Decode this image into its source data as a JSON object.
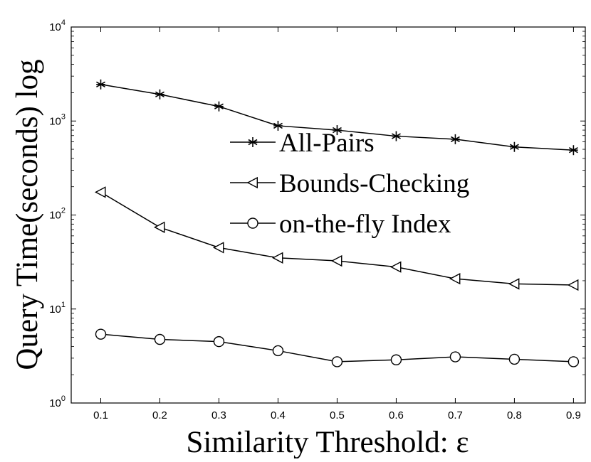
{
  "chart_data": {
    "type": "line",
    "xlabel": "Similarity Threshold: ε",
    "ylabel": "Query Time(seconds) log",
    "x": [
      0.1,
      0.2,
      0.3,
      0.4,
      0.5,
      0.6,
      0.7,
      0.8,
      0.9
    ],
    "x_ticks": [
      "0.1",
      "0.2",
      "0.3",
      "0.4",
      "0.5",
      "0.6",
      "0.7",
      "0.8",
      "0.9"
    ],
    "xlim": [
      0.05,
      0.92
    ],
    "yscale": "log",
    "ylim": [
      1,
      10000
    ],
    "y_ticks": [
      {
        "value": 1,
        "base": "10",
        "exp": "0"
      },
      {
        "value": 10,
        "base": "10",
        "exp": "1"
      },
      {
        "value": 100,
        "base": "10",
        "exp": "2"
      },
      {
        "value": 1000,
        "base": "10",
        "exp": "3"
      },
      {
        "value": 10000,
        "base": "10",
        "exp": "4"
      }
    ],
    "grid": false,
    "legend_position": "center-right",
    "series": [
      {
        "name": "All-Pairs",
        "marker": "asterisk",
        "values": [
          2450,
          1920,
          1430,
          890,
          800,
          690,
          640,
          530,
          490
        ]
      },
      {
        "name": "Bounds-Checking",
        "marker": "triangle-left",
        "values": [
          175,
          74,
          45,
          35,
          32.5,
          28,
          21,
          18.5,
          18
        ]
      },
      {
        "name": "on-the-fly Index",
        "marker": "circle",
        "values": [
          5.4,
          4.75,
          4.5,
          3.6,
          2.75,
          2.88,
          3.1,
          2.92,
          2.75
        ]
      }
    ],
    "colors": {
      "line": "#000000",
      "background": "#ffffff"
    }
  }
}
